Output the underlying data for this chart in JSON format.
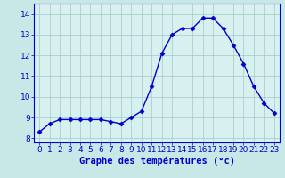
{
  "hours": [
    0,
    1,
    2,
    3,
    4,
    5,
    6,
    7,
    8,
    9,
    10,
    11,
    12,
    13,
    14,
    15,
    16,
    17,
    18,
    19,
    20,
    21,
    22,
    23
  ],
  "temps": [
    8.3,
    8.7,
    8.9,
    8.9,
    8.9,
    8.9,
    8.9,
    8.8,
    8.7,
    9.0,
    9.3,
    10.5,
    12.1,
    13.0,
    13.3,
    13.3,
    13.8,
    13.8,
    13.3,
    12.5,
    11.6,
    10.5,
    9.7,
    9.2
  ],
  "line_color": "#0000cc",
  "marker": "D",
  "marker_size": 2.5,
  "bg_color": "#c8e8e8",
  "plot_bg_color": "#d8f0f0",
  "grid_color": "#a0c8c8",
  "title": "Graphe des températures (°c)",
  "title_color": "#0000cc",
  "title_fontsize": 7.5,
  "xlim": [
    -0.5,
    23.5
  ],
  "ylim": [
    7.8,
    14.5
  ],
  "yticks": [
    8,
    9,
    10,
    11,
    12,
    13,
    14
  ],
  "xticks": [
    0,
    1,
    2,
    3,
    4,
    5,
    6,
    7,
    8,
    9,
    10,
    11,
    12,
    13,
    14,
    15,
    16,
    17,
    18,
    19,
    20,
    21,
    22,
    23
  ],
  "tick_fontsize": 6.5,
  "tick_color": "#0000cc",
  "spine_color": "#0000cc",
  "line_width": 1.0
}
